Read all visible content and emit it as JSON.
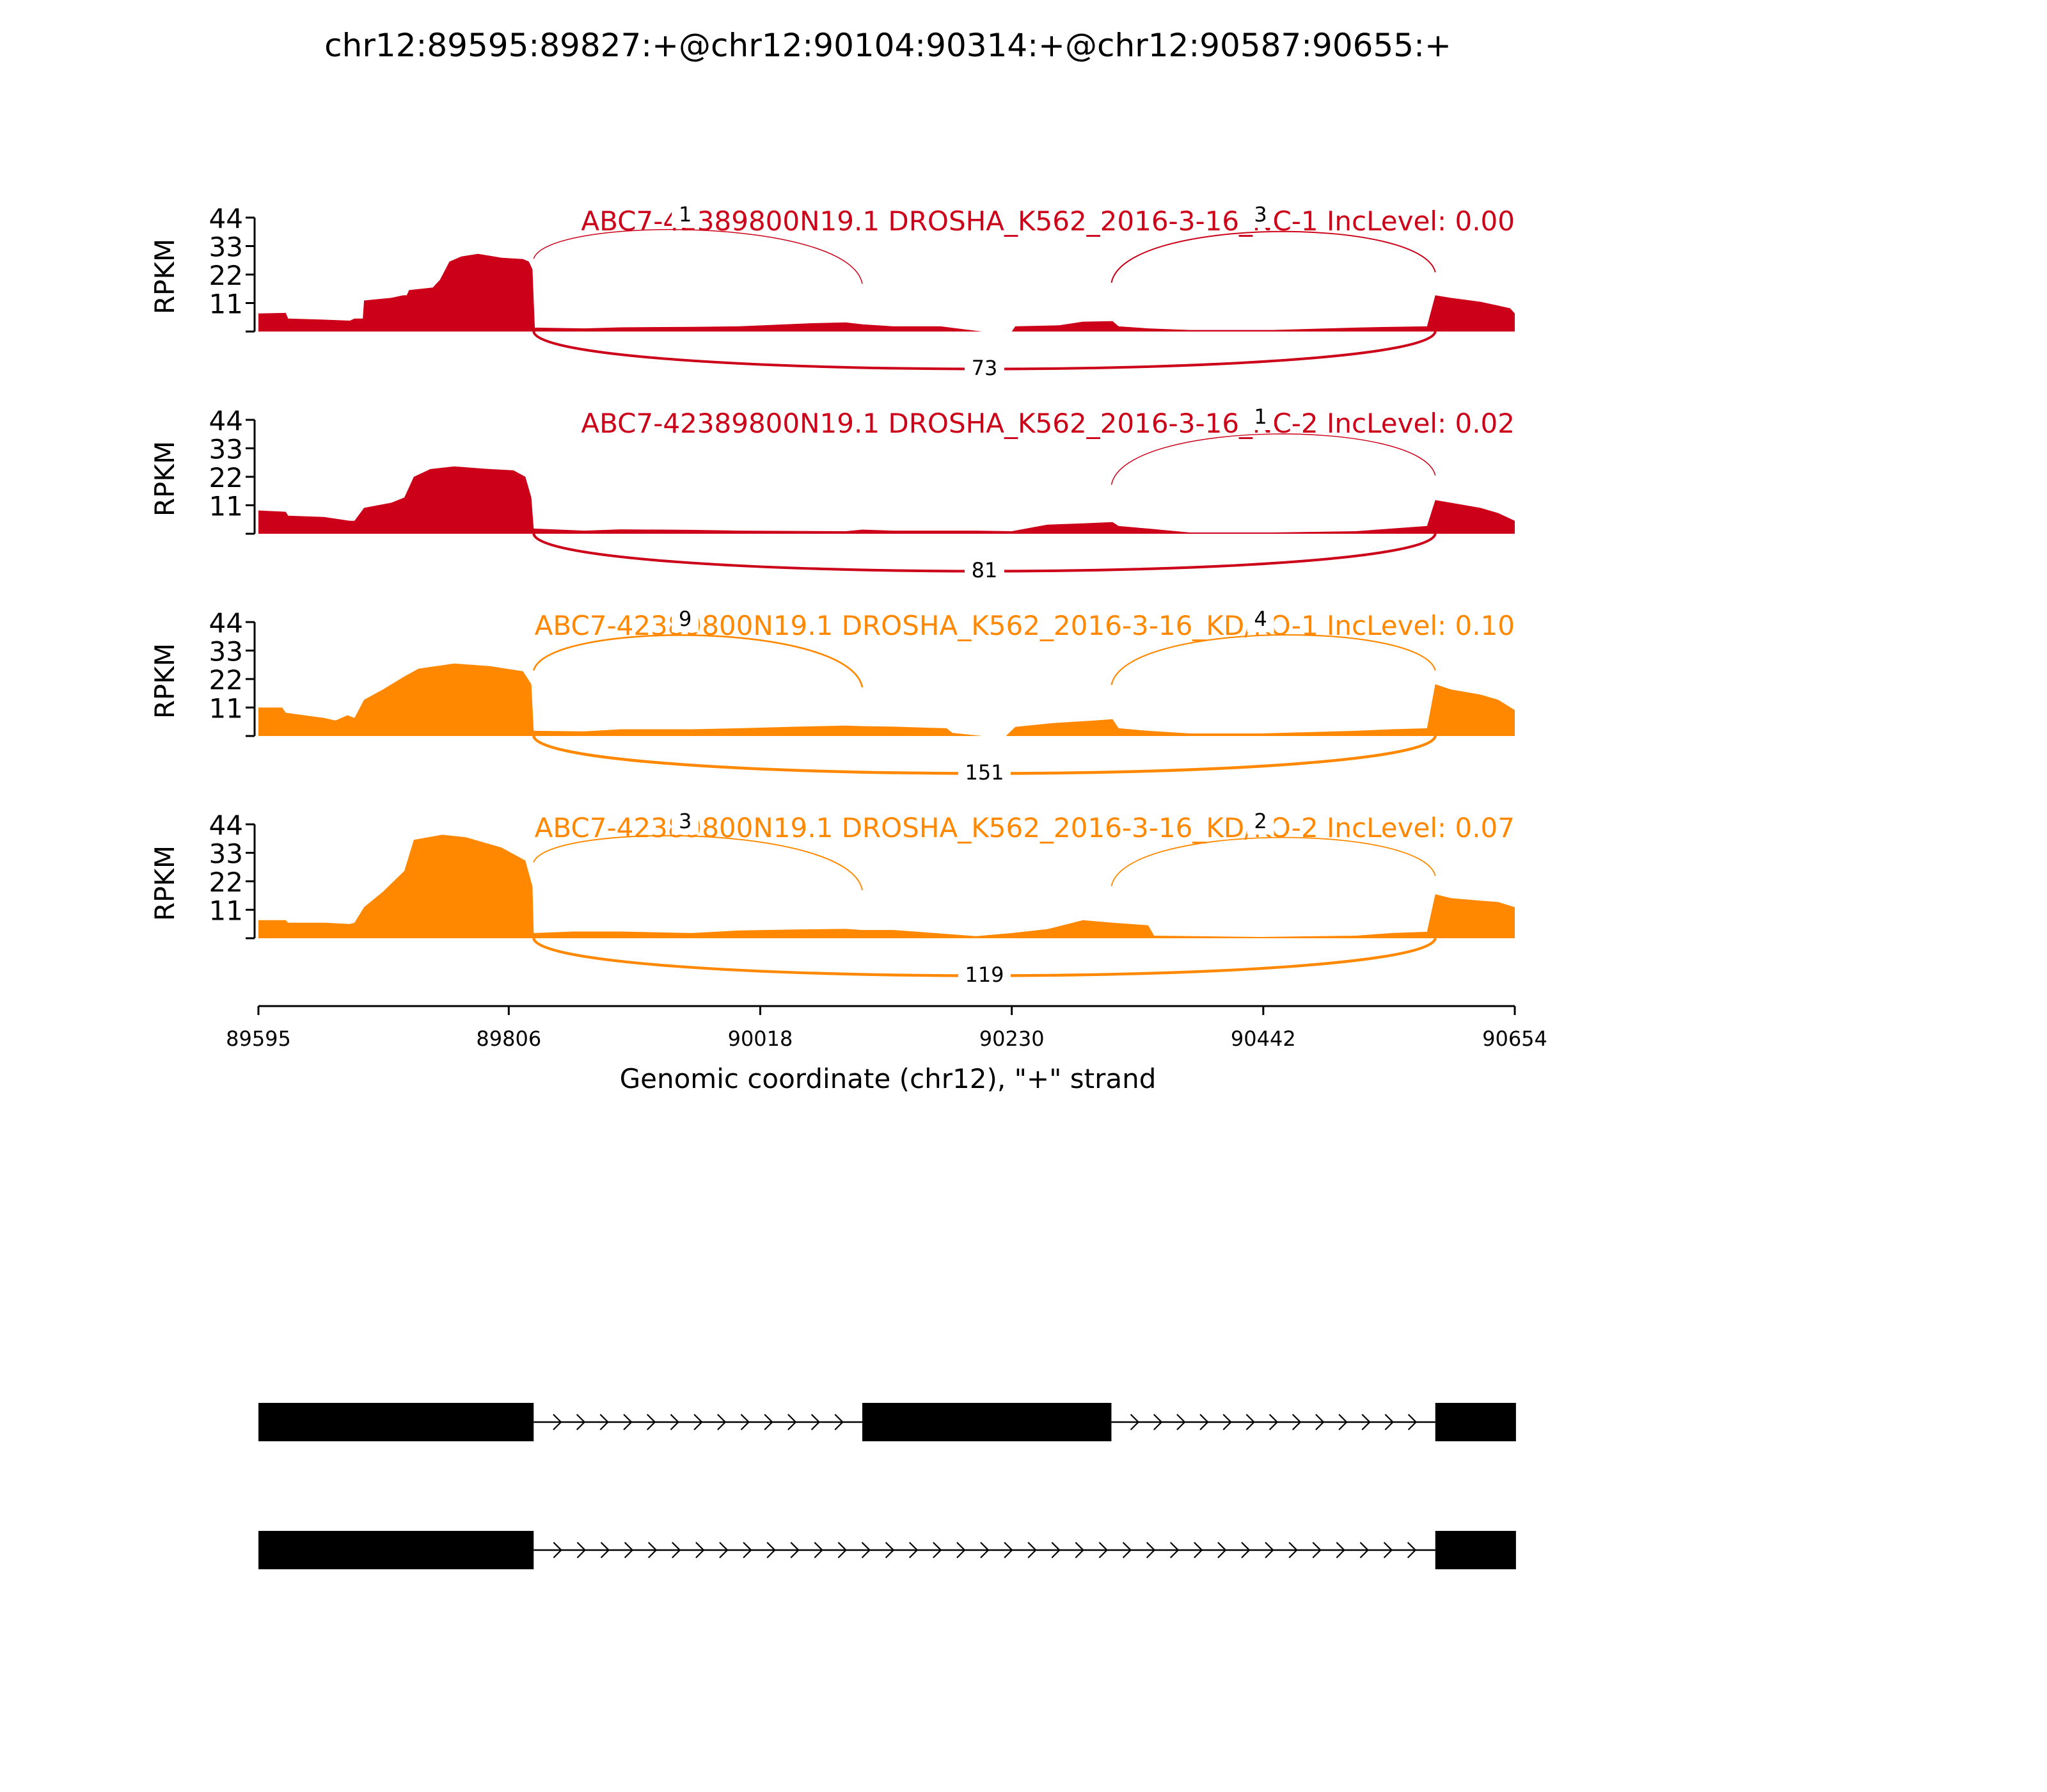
{
  "figure": {
    "title": "chr12:89595:89827:+@chr12:90104:90314:+@chr12:90587:90655:+"
  },
  "chart_data": {
    "type": "area",
    "subtype": "sashimi",
    "title": "chr12:89595:89827:+@chr12:90104:90314:+@chr12:90587:90655:+",
    "xlabel": "Genomic coordinate (chr12), \"+\" strand",
    "ylabel": "RPKM",
    "xlim": [
      89595,
      90654
    ],
    "xticks": [
      "89595",
      "89806",
      "90018",
      "90230",
      "90442",
      "90654"
    ],
    "ylim": [
      0,
      44
    ],
    "yticks": [
      "11",
      "22",
      "33",
      "44"
    ],
    "grid": false,
    "colors": {
      "nc": "#cc0018",
      "kd": "#ff8800",
      "exon": "#000000"
    },
    "exons": {
      "e1": [
        89595,
        89827
      ],
      "e2": [
        90104,
        90314
      ],
      "e3": [
        90587,
        90655
      ]
    },
    "tracks": [
      {
        "label": "ABC7-42389800N19.1 DROSHA_K562_2016-3-16_NC-1 IncLevel: 0.00",
        "color_key": "nc",
        "coverage": [
          [
            89595,
            7
          ],
          [
            89618,
            7.2
          ],
          [
            89620,
            5
          ],
          [
            89650,
            4.6
          ],
          [
            89672,
            4.2
          ],
          [
            89676,
            5
          ],
          [
            89683,
            5
          ],
          [
            89684,
            12
          ],
          [
            89707,
            13
          ],
          [
            89717,
            14
          ],
          [
            89720,
            14
          ],
          [
            89722,
            16
          ],
          [
            89742,
            17
          ],
          [
            89748,
            20
          ],
          [
            89756,
            27
          ],
          [
            89766,
            29
          ],
          [
            89780,
            30
          ],
          [
            89800,
            28.5
          ],
          [
            89818,
            28
          ],
          [
            89823,
            27
          ],
          [
            89826,
            24
          ],
          [
            89827,
            12
          ],
          [
            89828,
            1.5
          ],
          [
            89870,
            1.2
          ],
          [
            89900,
            1.6
          ],
          [
            89960,
            1.8
          ],
          [
            90000,
            2
          ],
          [
            90060,
            3.2
          ],
          [
            90090,
            3.5
          ],
          [
            90104,
            2.8
          ],
          [
            90130,
            2
          ],
          [
            90170,
            2
          ],
          [
            90180,
            1.4
          ],
          [
            90205,
            0
          ],
          [
            90230,
            0
          ],
          [
            90233,
            2
          ],
          [
            90270,
            2.4
          ],
          [
            90290,
            3.8
          ],
          [
            90315,
            4
          ],
          [
            90320,
            2
          ],
          [
            90345,
            1.2
          ],
          [
            90380,
            0.6
          ],
          [
            90450,
            0.6
          ],
          [
            90520,
            1.5
          ],
          [
            90550,
            1.8
          ],
          [
            90580,
            2
          ],
          [
            90587,
            14
          ],
          [
            90600,
            13
          ],
          [
            90625,
            11.5
          ],
          [
            90640,
            10
          ],
          [
            90650,
            9
          ],
          [
            90654,
            7
          ]
        ],
        "junctions": [
          {
            "count": "1",
            "from": 89827,
            "to": 90104,
            "side": "top"
          },
          {
            "count": "3",
            "from": 90314,
            "to": 90587,
            "side": "top"
          },
          {
            "count": "73",
            "from": 89827,
            "to": 90587,
            "side": "bottom"
          }
        ]
      },
      {
        "label": "ABC7-42389800N19.1 DROSHA_K562_2016-3-16_NC-2 IncLevel: 0.02",
        "color_key": "nc",
        "coverage": [
          [
            89595,
            9
          ],
          [
            89618,
            8.5
          ],
          [
            89620,
            7
          ],
          [
            89650,
            6.5
          ],
          [
            89672,
            5
          ],
          [
            89676,
            5
          ],
          [
            89684,
            10
          ],
          [
            89707,
            12
          ],
          [
            89718,
            14
          ],
          [
            89726,
            22
          ],
          [
            89740,
            25
          ],
          [
            89760,
            26
          ],
          [
            89790,
            25
          ],
          [
            89810,
            24.5
          ],
          [
            89820,
            22
          ],
          [
            89825,
            14
          ],
          [
            89827,
            2
          ],
          [
            89870,
            1.2
          ],
          [
            89900,
            1.7
          ],
          [
            89960,
            1.5
          ],
          [
            90000,
            1.2
          ],
          [
            90090,
            1
          ],
          [
            90104,
            1.6
          ],
          [
            90130,
            1.2
          ],
          [
            90200,
            1.2
          ],
          [
            90230,
            1
          ],
          [
            90260,
            3.5
          ],
          [
            90290,
            4
          ],
          [
            90315,
            4.5
          ],
          [
            90320,
            3
          ],
          [
            90345,
            2
          ],
          [
            90380,
            0.5
          ],
          [
            90450,
            0.5
          ],
          [
            90520,
            1
          ],
          [
            90550,
            2
          ],
          [
            90580,
            3
          ],
          [
            90587,
            13
          ],
          [
            90600,
            12
          ],
          [
            90625,
            10
          ],
          [
            90640,
            8
          ],
          [
            90654,
            5
          ]
        ],
        "junctions": [
          {
            "count": "1",
            "from": 90314,
            "to": 90587,
            "side": "top"
          },
          {
            "count": "81",
            "from": 89827,
            "to": 90587,
            "side": "bottom"
          }
        ]
      },
      {
        "label": "ABC7-42389800N19.1 DROSHA_K562_2016-3-16_KD/KO-1 IncLevel: 0.10",
        "color_key": "kd",
        "coverage": [
          [
            89595,
            11
          ],
          [
            89615,
            11
          ],
          [
            89618,
            9
          ],
          [
            89650,
            7
          ],
          [
            89660,
            6
          ],
          [
            89670,
            8
          ],
          [
            89676,
            7
          ],
          [
            89684,
            14
          ],
          [
            89700,
            18
          ],
          [
            89718,
            23
          ],
          [
            89730,
            26
          ],
          [
            89760,
            28
          ],
          [
            89790,
            27
          ],
          [
            89818,
            25
          ],
          [
            89825,
            20
          ],
          [
            89827,
            2
          ],
          [
            89870,
            1.8
          ],
          [
            89900,
            2.6
          ],
          [
            89960,
            2.6
          ],
          [
            90000,
            3
          ],
          [
            90050,
            3.6
          ],
          [
            90090,
            4
          ],
          [
            90104,
            3.8
          ],
          [
            90130,
            3.6
          ],
          [
            90160,
            3.2
          ],
          [
            90175,
            3
          ],
          [
            90180,
            1.2
          ],
          [
            90205,
            0
          ],
          [
            90225,
            0
          ],
          [
            90233,
            3.5
          ],
          [
            90265,
            5
          ],
          [
            90300,
            6
          ],
          [
            90315,
            6.5
          ],
          [
            90320,
            3
          ],
          [
            90345,
            2
          ],
          [
            90380,
            1
          ],
          [
            90440,
            1
          ],
          [
            90520,
            2
          ],
          [
            90550,
            2.6
          ],
          [
            90580,
            3
          ],
          [
            90587,
            20
          ],
          [
            90600,
            18
          ],
          [
            90625,
            16
          ],
          [
            90640,
            14
          ],
          [
            90654,
            10
          ]
        ],
        "junctions": [
          {
            "count": "9",
            "from": 89827,
            "to": 90104,
            "side": "top"
          },
          {
            "count": "4",
            "from": 90314,
            "to": 90587,
            "side": "top"
          },
          {
            "count": "151",
            "from": 89827,
            "to": 90587,
            "side": "bottom"
          }
        ]
      },
      {
        "label": "ABC7-42389800N19.1 DROSHA_K562_2016-3-16_KD/KO-2 IncLevel: 0.07",
        "color_key": "kd",
        "coverage": [
          [
            89595,
            7
          ],
          [
            89618,
            7
          ],
          [
            89620,
            6
          ],
          [
            89650,
            6
          ],
          [
            89672,
            5.5
          ],
          [
            89676,
            6
          ],
          [
            89684,
            12
          ],
          [
            89700,
            18
          ],
          [
            89718,
            26
          ],
          [
            89726,
            38
          ],
          [
            89750,
            40
          ],
          [
            89770,
            39
          ],
          [
            89800,
            35
          ],
          [
            89820,
            30
          ],
          [
            89826,
            20
          ],
          [
            89827,
            2
          ],
          [
            89860,
            2.6
          ],
          [
            89900,
            2.6
          ],
          [
            89960,
            2
          ],
          [
            90000,
            3
          ],
          [
            90050,
            3.4
          ],
          [
            90090,
            3.6
          ],
          [
            90104,
            3.2
          ],
          [
            90130,
            3.2
          ],
          [
            90165,
            2
          ],
          [
            90200,
            0.8
          ],
          [
            90230,
            2
          ],
          [
            90260,
            3.5
          ],
          [
            90290,
            7
          ],
          [
            90315,
            6
          ],
          [
            90345,
            5
          ],
          [
            90350,
            1
          ],
          [
            90440,
            0.5
          ],
          [
            90520,
            1
          ],
          [
            90550,
            2
          ],
          [
            90580,
            2.5
          ],
          [
            90587,
            17
          ],
          [
            90600,
            15.5
          ],
          [
            90625,
            14.5
          ],
          [
            90640,
            14
          ],
          [
            90654,
            12
          ]
        ],
        "junctions": [
          {
            "count": "3",
            "from": 89827,
            "to": 90104,
            "side": "top"
          },
          {
            "count": "2",
            "from": 90314,
            "to": 90587,
            "side": "top"
          },
          {
            "count": "119",
            "from": 89827,
            "to": 90587,
            "side": "bottom"
          }
        ]
      }
    ],
    "isoforms": [
      {
        "exons": [
          [
            89595,
            89827
          ],
          [
            90104,
            90314
          ],
          [
            90587,
            90655
          ]
        ]
      },
      {
        "exons": [
          [
            89595,
            89827
          ],
          [
            90587,
            90655
          ]
        ]
      }
    ]
  }
}
